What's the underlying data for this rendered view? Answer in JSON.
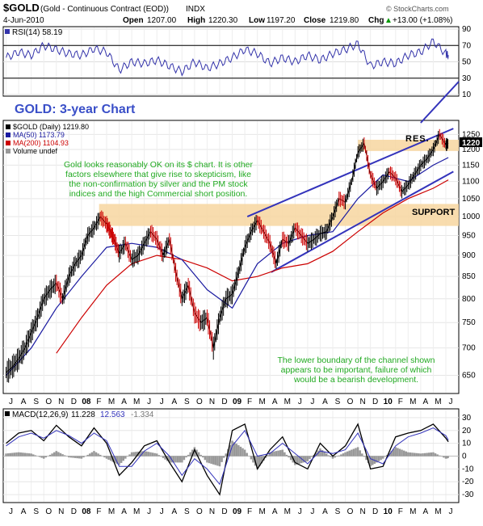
{
  "header": {
    "symbol": "$GOLD",
    "description": "(Gold - Continuous Contract (EOD))",
    "exchange": "INDX",
    "watermark": "© StockCharts.com",
    "date": "4-Jun-2010",
    "quote": {
      "open_label": "Open",
      "open": "1207.00",
      "high_label": "High",
      "high": "1220.30",
      "low_label": "Low",
      "low": "1197.20",
      "close_label": "Close",
      "close": "1219.80",
      "chg_label": "Chg",
      "chg": "+13.00 (+1.08%)",
      "chg_arrow": "▲"
    }
  },
  "colors": {
    "price": "#000000",
    "down": "#cc0000",
    "ma50": "#1a1aa0",
    "ma200": "#cc0000",
    "channel": "#3333bb",
    "zone": "#f7d6a0",
    "annotation_green": "#22aa22",
    "title_blue": "#3a4fc8",
    "volume": "#999999"
  },
  "x_axis_labels": [
    "J",
    "A",
    "S",
    "O",
    "N",
    "D",
    "08",
    "F",
    "M",
    "A",
    "M",
    "J",
    "J",
    "A",
    "S",
    "O",
    "N",
    "D",
    "09",
    "F",
    "M",
    "A",
    "M",
    "J",
    "J",
    "A",
    "S",
    "O",
    "N",
    "D",
    "10",
    "F",
    "M",
    "A",
    "M",
    "J"
  ],
  "rsi_panel": {
    "legend": "RSI(14) 58.19",
    "y_ticks": [
      90,
      70,
      50,
      30,
      10
    ],
    "overbought": 70,
    "oversold": 30,
    "ylim": [
      10,
      90
    ]
  },
  "price_panel": {
    "title": "GOLD: 3-year Chart",
    "legend": [
      {
        "text": "$GOLD (Daily) 1219.80",
        "swatch": "price"
      },
      {
        "text": "MA(50) 1173.79",
        "swatch": "ma50"
      },
      {
        "text": "MA(200) 1104.93",
        "swatch": "ma200"
      },
      {
        "text": "Volume undef",
        "swatch": "volume"
      }
    ],
    "y_ticks": [
      1250,
      1200,
      1150,
      1100,
      1050,
      1000,
      950,
      900,
      850,
      800,
      750,
      700,
      650
    ],
    "last_price_tag": "1220",
    "res_label": "RES.",
    "support_label": "SUPPORT",
    "annotation_top": [
      "Gold looks reasonably OK on its $ chart. It is other",
      "factors elsewhere that give rise to skepticism, like",
      "the non-confirmation by silver and the PM stock",
      "indices and the high Commercial short position."
    ],
    "annotation_bottom": [
      "The lower boundary of the channel shown",
      "appears to be important, failure of which",
      "would be a bearish development."
    ]
  },
  "macd_panel": {
    "legend_label": "MACD(12,26,9)",
    "macd": "11.228",
    "signal": "12.563",
    "hist": "-1.334",
    "y_ticks": [
      30,
      20,
      10,
      0,
      -10,
      -20,
      -30
    ],
    "ylim": [
      -35,
      35
    ]
  },
  "chart_data": [
    {
      "type": "line",
      "name": "price",
      "x_unit": "months since Jul 2007",
      "x": [
        0,
        0.5,
        1,
        1.5,
        2,
        2.5,
        3,
        3.5,
        4,
        4.5,
        5,
        5.5,
        6,
        6.5,
        7,
        7.5,
        8,
        8.3,
        8.6,
        9,
        9.5,
        10,
        10.5,
        11,
        11.5,
        12,
        12.5,
        13,
        13.5,
        14,
        14.5,
        15,
        15.5,
        16,
        16.5,
        17,
        17.5,
        18,
        18.5,
        19,
        19.5,
        20,
        20.5,
        21,
        21.5,
        22,
        22.5,
        23,
        23.5,
        24,
        24.5,
        25,
        25.5,
        26,
        26.5,
        27,
        27.5,
        28,
        28.5,
        29,
        29.5,
        30,
        30.5,
        31,
        31.5,
        32,
        32.5,
        33,
        33.5,
        34,
        34.5,
        35,
        35.2
      ],
      "y": [
        655,
        665,
        680,
        700,
        730,
        760,
        800,
        820,
        835,
        800,
        850,
        880,
        900,
        950,
        970,
        1000,
        980,
        960,
        940,
        905,
        930,
        890,
        900,
        930,
        960,
        940,
        900,
        940,
        860,
        800,
        830,
        770,
        750,
        760,
        700,
        760,
        800,
        810,
        860,
        920,
        960,
        990,
        960,
        930,
        880,
        940,
        930,
        970,
        950,
        930,
        940,
        955,
        960,
        1000,
        1050,
        1040,
        1100,
        1190,
        1220,
        1120,
        1080,
        1100,
        1130,
        1110,
        1070,
        1090,
        1120,
        1150,
        1170,
        1200,
        1250,
        1215,
        1219.8
      ]
    },
    {
      "type": "line",
      "name": "MA(50)",
      "x": [
        0,
        2,
        4,
        6,
        8,
        10,
        12,
        14,
        16,
        18,
        20,
        22,
        24,
        26,
        28,
        30,
        32,
        34,
        35.2
      ],
      "y": [
        650,
        700,
        780,
        850,
        920,
        930,
        920,
        890,
        820,
        780,
        880,
        930,
        950,
        960,
        1050,
        1120,
        1100,
        1150,
        1173.79
      ]
    },
    {
      "type": "line",
      "name": "MA(200)",
      "x": [
        4,
        6,
        8,
        10,
        12,
        14,
        16,
        18,
        20,
        22,
        24,
        26,
        28,
        30,
        32,
        34,
        35.2
      ],
      "y": [
        690,
        760,
        830,
        880,
        900,
        890,
        870,
        840,
        850,
        870,
        880,
        910,
        960,
        1010,
        1050,
        1080,
        1104.93
      ]
    },
    {
      "type": "line",
      "name": "RSI(14)",
      "ylim": [
        10,
        90
      ],
      "x": [
        0,
        1,
        2,
        3,
        4,
        5,
        6,
        7,
        8,
        9,
        10,
        11,
        12,
        13,
        14,
        15,
        16,
        17,
        18,
        19,
        20,
        21,
        22,
        23,
        24,
        25,
        26,
        27,
        28,
        29,
        30,
        31,
        32,
        33,
        34,
        35,
        35.2
      ],
      "y": [
        55,
        62,
        58,
        70,
        65,
        60,
        58,
        66,
        62,
        40,
        50,
        48,
        52,
        45,
        38,
        50,
        42,
        48,
        55,
        65,
        60,
        48,
        55,
        50,
        58,
        52,
        60,
        65,
        72,
        45,
        50,
        48,
        58,
        62,
        75,
        60,
        58.19
      ]
    },
    {
      "type": "line",
      "name": "MACD",
      "ylim": [
        -35,
        35
      ],
      "x": [
        0,
        1,
        2,
        3,
        4,
        5,
        6,
        7,
        8,
        9,
        10,
        11,
        12,
        13,
        14,
        15,
        16,
        17,
        18,
        19,
        20,
        21,
        22,
        23,
        24,
        25,
        26,
        27,
        28,
        29,
        30,
        31,
        32,
        33,
        34,
        35,
        35.2
      ],
      "macd": [
        10,
        18,
        20,
        12,
        24,
        15,
        8,
        22,
        10,
        -15,
        -5,
        8,
        12,
        -5,
        -20,
        5,
        -15,
        -30,
        20,
        25,
        -10,
        5,
        15,
        -5,
        -10,
        10,
        0,
        8,
        25,
        -10,
        -8,
        15,
        18,
        20,
        25,
        14,
        11.228
      ],
      "signal": [
        8,
        15,
        18,
        14,
        20,
        16,
        10,
        18,
        12,
        -8,
        -8,
        4,
        10,
        0,
        -15,
        -2,
        -10,
        -22,
        8,
        20,
        0,
        2,
        10,
        2,
        -6,
        4,
        2,
        5,
        18,
        -2,
        -6,
        8,
        15,
        18,
        22,
        16,
        12.563
      ]
    }
  ]
}
